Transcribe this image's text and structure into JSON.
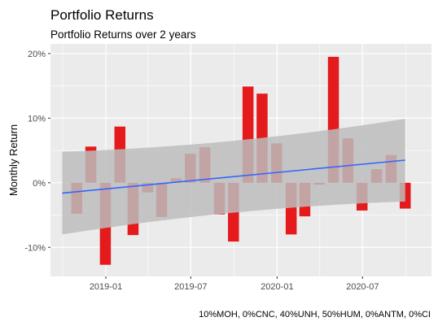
{
  "chart_data": {
    "type": "bar",
    "title": "Portfolio Returns",
    "subtitle": "Portfolio Returns over 2 years",
    "ylabel": "Monthly Return",
    "xlabel": "",
    "caption": "10%MOH, 0%CNC, 40%UNH, 50%HUM, 0%ANTM, 0%CI",
    "ylim": [
      -14.5,
      21.5
    ],
    "y_ticks": [
      {
        "value": -10,
        "label": "-10%"
      },
      {
        "value": 0,
        "label": "0%"
      },
      {
        "value": 10,
        "label": "10%"
      },
      {
        "value": 20,
        "label": "20%"
      }
    ],
    "x_ticks": [
      {
        "value": "2019-01-01",
        "label": "2019-01"
      },
      {
        "value": "2019-07-01",
        "label": "2019-07"
      },
      {
        "value": "2020-01-01",
        "label": "2020-01"
      },
      {
        "value": "2020-07-01",
        "label": "2020-07"
      }
    ],
    "x": [
      "2018-10-31",
      "2018-11-30",
      "2018-12-31",
      "2019-01-31",
      "2019-02-28",
      "2019-03-31",
      "2019-04-30",
      "2019-05-31",
      "2019-06-30",
      "2019-07-31",
      "2019-08-31",
      "2019-09-30",
      "2019-10-31",
      "2019-11-30",
      "2019-12-31",
      "2020-01-31",
      "2020-02-29",
      "2020-03-31",
      "2020-04-30",
      "2020-05-31",
      "2020-06-30",
      "2020-07-31",
      "2020-08-31",
      "2020-09-30",
      "2020-10-31"
    ],
    "values": [
      -4.8,
      5.6,
      -12.7,
      8.7,
      -8.1,
      -1.5,
      -5.3,
      0.7,
      4.5,
      5.5,
      -4.9,
      -9.1,
      14.9,
      13.8,
      6.1,
      -8.0,
      -5.2,
      -0.3,
      19.5,
      6.9,
      -4.3,
      2.1,
      4.3,
      -4.0,
      null
    ],
    "trend": {
      "start_x": "2018-09-30",
      "end_x": "2020-09-30",
      "start_y": -1.6,
      "end_y": 3.5,
      "band_start": [
        -8.0,
        4.8
      ],
      "band_mid": [
        -2.8,
        6.4
      ],
      "band_end": [
        -2.9,
        9.9
      ]
    },
    "bar_color": "#e41a1c",
    "trend_color": "#3366ff",
    "band_color": "#bdbdbd",
    "panel_color": "#ebebeb",
    "grid": true,
    "legend": "none"
  }
}
